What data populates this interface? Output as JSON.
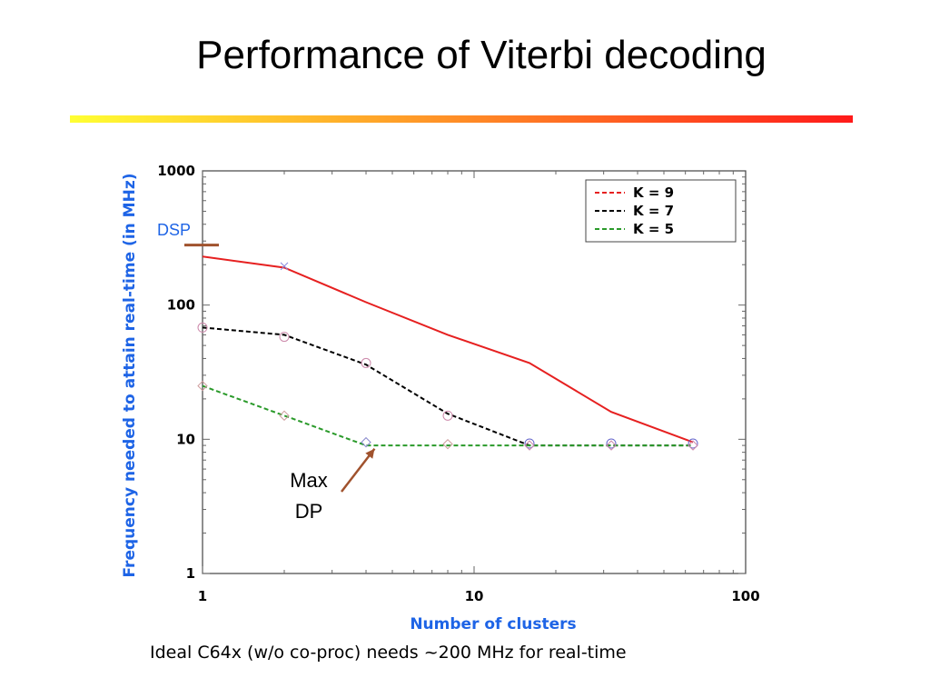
{
  "slide": {
    "title": "Performance of Viterbi decoding",
    "caption": "Ideal C64x (w/o co-proc) needs ~200 MHz for real-time",
    "title_bar_colors": [
      "#ffff33",
      "#ff1a1a"
    ]
  },
  "chart_data": {
    "type": "line",
    "xlabel": "Number of clusters",
    "ylabel": "Frequency needed to attain real-time (in MHz)",
    "x_scale": "log",
    "y_scale": "log",
    "xlim": [
      1,
      100
    ],
    "ylim": [
      1,
      1000
    ],
    "x_ticks": [
      {
        "value": 1,
        "label": "1"
      },
      {
        "value": 10,
        "label": "10"
      },
      {
        "value": 100,
        "label": "100"
      }
    ],
    "y_ticks": [
      {
        "value": 1,
        "label": "1"
      },
      {
        "value": 10,
        "label": "10"
      },
      {
        "value": 100,
        "label": "100"
      },
      {
        "value": 1000,
        "label": "1000"
      }
    ],
    "legend_position": "top-right",
    "series": [
      {
        "name": "K = 9",
        "color": "#e62020",
        "dash": "solid-line",
        "legend_dash": "dashed",
        "x": [
          1,
          2,
          4,
          8,
          16,
          32,
          64
        ],
        "y": [
          230,
          190,
          105,
          60,
          37,
          16,
          9.5
        ]
      },
      {
        "name": "K = 7",
        "color": "#000000",
        "dash": "dashed",
        "x": [
          1,
          2,
          4,
          8,
          16,
          32,
          64
        ],
        "y": [
          68,
          60,
          36,
          15.5,
          9,
          9,
          9
        ]
      },
      {
        "name": "K = 5",
        "color": "#2a9a2a",
        "dash": "dashed",
        "x": [
          1,
          2,
          4,
          8,
          16,
          32,
          64
        ],
        "y": [
          25,
          15,
          9,
          9,
          9,
          9,
          9
        ]
      }
    ],
    "markers": [
      {
        "x": 2,
        "y": 195,
        "symbol": "x",
        "color": "#8888dd"
      },
      {
        "x": 1,
        "y": 68,
        "symbol": "o",
        "color": "#cc88aa"
      },
      {
        "x": 2,
        "y": 58,
        "symbol": "o",
        "color": "#cc88aa"
      },
      {
        "x": 4,
        "y": 37,
        "symbol": "o",
        "color": "#cc88aa"
      },
      {
        "x": 8,
        "y": 15,
        "symbol": "o",
        "color": "#cc88aa"
      },
      {
        "x": 1,
        "y": 25,
        "symbol": "diamond",
        "color": "#cc9999"
      },
      {
        "x": 2,
        "y": 15,
        "symbol": "diamond",
        "color": "#cc9999"
      },
      {
        "x": 4,
        "y": 9.5,
        "symbol": "diamond",
        "color": "#8888cc"
      },
      {
        "x": 8,
        "y": 9.2,
        "symbol": "diamond",
        "color": "#cc9999"
      },
      {
        "x": 16,
        "y": 9.3,
        "symbol": "o",
        "color": "#6666cc"
      },
      {
        "x": 16,
        "y": 9.0,
        "symbol": "diamond",
        "color": "#cc88aa"
      },
      {
        "x": 32,
        "y": 9.3,
        "symbol": "o",
        "color": "#6666cc"
      },
      {
        "x": 32,
        "y": 9.0,
        "symbol": "diamond",
        "color": "#cc88aa"
      },
      {
        "x": 64,
        "y": 9.3,
        "symbol": "o",
        "color": "#6666cc"
      },
      {
        "x": 64,
        "y": 9.0,
        "symbol": "diamond",
        "color": "#cc88aa"
      }
    ],
    "annotations": {
      "dsp": {
        "text": "DSP",
        "y": 280,
        "color": "#a0522d"
      },
      "max_dp": {
        "lines": [
          "Max",
          "DP"
        ],
        "arrow_to": {
          "x": 4.3,
          "y": 8.5
        },
        "color": "#a0522d"
      }
    }
  }
}
